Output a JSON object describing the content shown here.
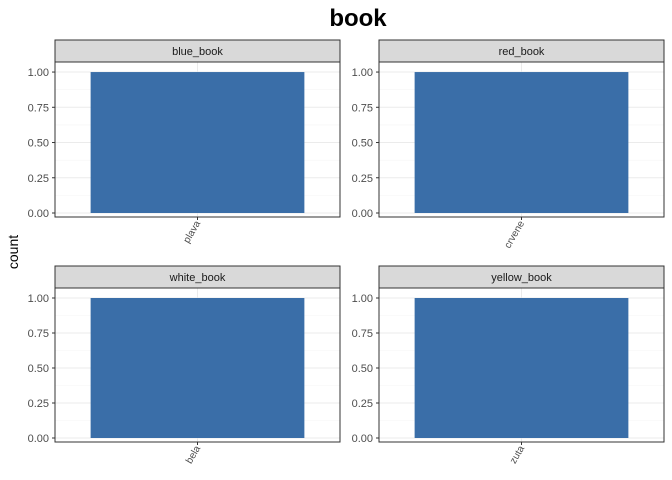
{
  "chart_data": {
    "type": "bar",
    "title": "book",
    "ylabel": "count",
    "xlabel": "",
    "ylim": [
      0,
      1.05
    ],
    "yticks": [
      "0.00",
      "0.25",
      "0.50",
      "0.75",
      "1.00"
    ],
    "bar_color": "#3A6EA8",
    "strip_color": "#D9D9D9",
    "grid": true,
    "panels": [
      {
        "label": "blue_book",
        "categories": [
          "plava"
        ],
        "values": [
          1
        ]
      },
      {
        "label": "red_book",
        "categories": [
          "crvene"
        ],
        "values": [
          1
        ]
      },
      {
        "label": "white_book",
        "categories": [
          "bela"
        ],
        "values": [
          1
        ]
      },
      {
        "label": "yellow_book",
        "categories": [
          "zuta"
        ],
        "values": [
          1
        ]
      }
    ]
  }
}
